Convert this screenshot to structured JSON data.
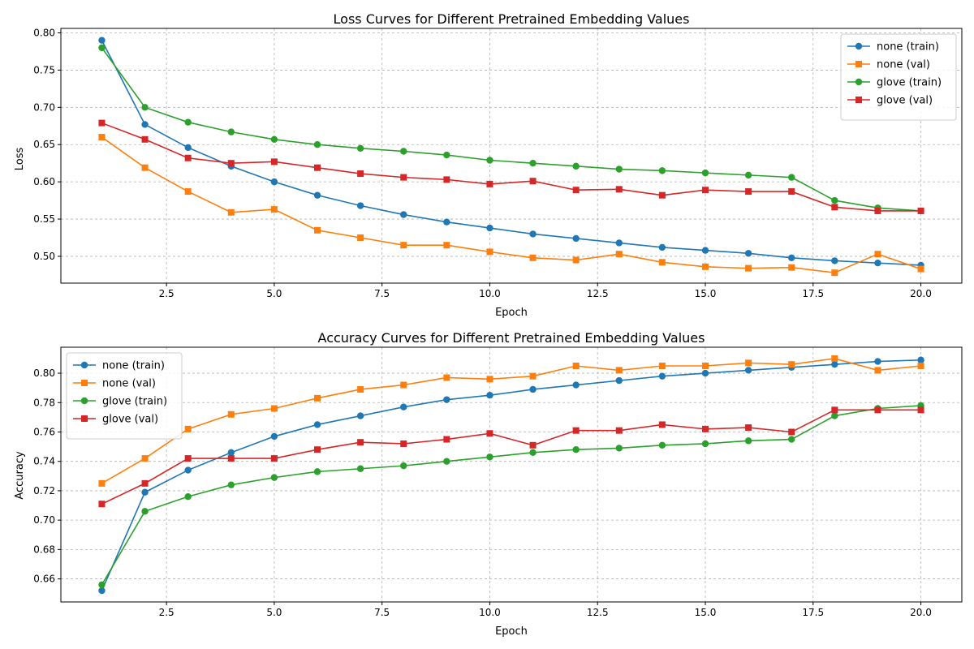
{
  "chart_data": [
    {
      "type": "line",
      "title": "Loss Curves for Different Pretrained Embedding Values",
      "xlabel": "Epoch",
      "ylabel": "Loss",
      "xlim": [
        0.05,
        20.95
      ],
      "ylim": [
        0.464,
        0.806
      ],
      "xticks": [
        2.5,
        5.0,
        7.5,
        10.0,
        12.5,
        15.0,
        17.5,
        20.0
      ],
      "xtick_labels": [
        "2.5",
        "5.0",
        "7.5",
        "10.0",
        "12.5",
        "15.0",
        "17.5",
        "20.0"
      ],
      "yticks": [
        0.5,
        0.55,
        0.6,
        0.65,
        0.7,
        0.75,
        0.8
      ],
      "ytick_labels": [
        "0.50",
        "0.55",
        "0.60",
        "0.65",
        "0.70",
        "0.75",
        "0.80"
      ],
      "grid": true,
      "legend_position": "top-right",
      "x": [
        1,
        2,
        3,
        4,
        5,
        6,
        7,
        8,
        9,
        10,
        11,
        12,
        13,
        14,
        15,
        16,
        17,
        18,
        19,
        20
      ],
      "series": [
        {
          "name": "none (train)",
          "color": "#1f77b4",
          "marker": "circle",
          "values": [
            0.79,
            0.677,
            0.646,
            0.621,
            0.6,
            0.582,
            0.568,
            0.556,
            0.546,
            0.538,
            0.53,
            0.524,
            0.518,
            0.512,
            0.508,
            0.504,
            0.498,
            0.494,
            0.491,
            0.488
          ]
        },
        {
          "name": "none (val)",
          "color": "#ff7f0e",
          "marker": "square",
          "values": [
            0.66,
            0.619,
            0.587,
            0.559,
            0.563,
            0.535,
            0.525,
            0.515,
            0.515,
            0.506,
            0.498,
            0.495,
            0.503,
            0.492,
            0.486,
            0.484,
            0.485,
            0.478,
            0.503,
            0.483
          ]
        },
        {
          "name": "glove (train)",
          "color": "#2ca02c",
          "marker": "circle",
          "values": [
            0.78,
            0.7,
            0.68,
            0.667,
            0.657,
            0.65,
            0.645,
            0.641,
            0.636,
            0.629,
            0.625,
            0.621,
            0.617,
            0.615,
            0.612,
            0.609,
            0.606,
            0.575,
            0.565,
            0.561
          ]
        },
        {
          "name": "glove (val)",
          "color": "#d62728",
          "marker": "square",
          "values": [
            0.679,
            0.657,
            0.632,
            0.625,
            0.627,
            0.619,
            0.611,
            0.606,
            0.603,
            0.597,
            0.601,
            0.589,
            0.59,
            0.582,
            0.589,
            0.587,
            0.587,
            0.566,
            0.561,
            0.561
          ]
        }
      ]
    },
    {
      "type": "line",
      "title": "Accuracy Curves for Different Pretrained Embedding Values",
      "xlabel": "Epoch",
      "ylabel": "Accuracy",
      "xlim": [
        0.05,
        20.95
      ],
      "ylim": [
        0.6443,
        0.8177
      ],
      "xticks": [
        2.5,
        5.0,
        7.5,
        10.0,
        12.5,
        15.0,
        17.5,
        20.0
      ],
      "xtick_labels": [
        "2.5",
        "5.0",
        "7.5",
        "10.0",
        "12.5",
        "15.0",
        "17.5",
        "20.0"
      ],
      "yticks": [
        0.66,
        0.68,
        0.7,
        0.72,
        0.74,
        0.76,
        0.78,
        0.8
      ],
      "ytick_labels": [
        "0.66",
        "0.68",
        "0.70",
        "0.72",
        "0.74",
        "0.76",
        "0.78",
        "0.80"
      ],
      "grid": true,
      "legend_position": "top-left",
      "x": [
        1,
        2,
        3,
        4,
        5,
        6,
        7,
        8,
        9,
        10,
        11,
        12,
        13,
        14,
        15,
        16,
        17,
        18,
        19,
        20
      ],
      "series": [
        {
          "name": "none (train)",
          "color": "#1f77b4",
          "marker": "circle",
          "values": [
            0.652,
            0.719,
            0.734,
            0.746,
            0.757,
            0.765,
            0.771,
            0.777,
            0.782,
            0.785,
            0.789,
            0.792,
            0.795,
            0.798,
            0.8,
            0.802,
            0.804,
            0.806,
            0.808,
            0.809
          ]
        },
        {
          "name": "none (val)",
          "color": "#ff7f0e",
          "marker": "square",
          "values": [
            0.725,
            0.742,
            0.762,
            0.772,
            0.776,
            0.783,
            0.789,
            0.792,
            0.797,
            0.796,
            0.798,
            0.805,
            0.802,
            0.805,
            0.805,
            0.807,
            0.806,
            0.81,
            0.802,
            0.805
          ]
        },
        {
          "name": "glove (train)",
          "color": "#2ca02c",
          "marker": "circle",
          "values": [
            0.656,
            0.706,
            0.716,
            0.724,
            0.729,
            0.733,
            0.735,
            0.737,
            0.74,
            0.743,
            0.746,
            0.748,
            0.749,
            0.751,
            0.752,
            0.754,
            0.755,
            0.771,
            0.776,
            0.778
          ]
        },
        {
          "name": "glove (val)",
          "color": "#d62728",
          "marker": "square",
          "values": [
            0.711,
            0.725,
            0.742,
            0.742,
            0.742,
            0.748,
            0.753,
            0.752,
            0.755,
            0.759,
            0.751,
            0.761,
            0.761,
            0.765,
            0.762,
            0.763,
            0.76,
            0.775,
            0.775,
            0.775
          ]
        }
      ]
    }
  ]
}
